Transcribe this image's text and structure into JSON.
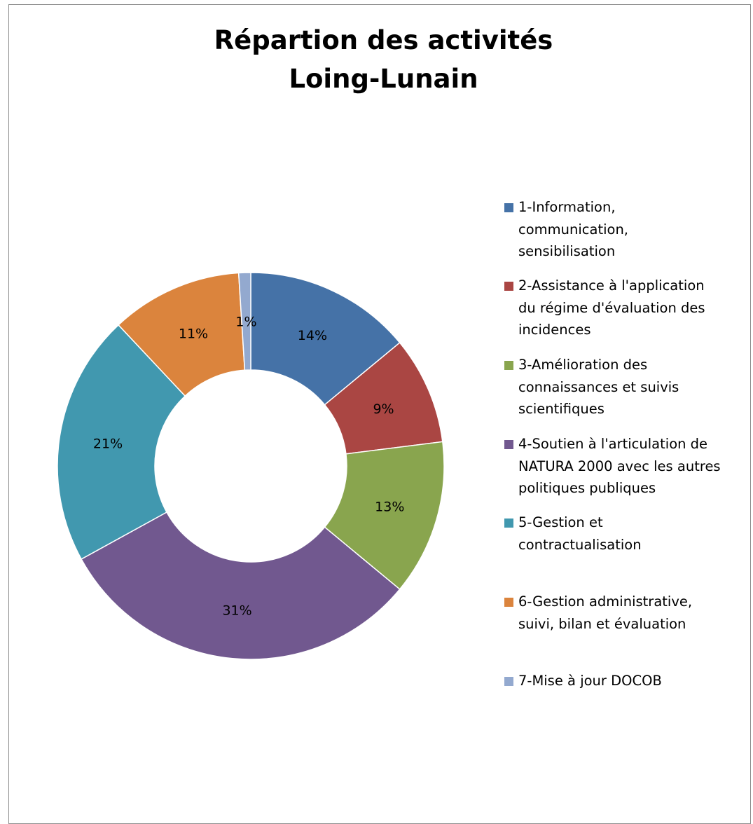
{
  "chart_data": {
    "type": "pie",
    "variant": "doughnut",
    "title_lines": [
      "Répartion des activités",
      "Loing-Lunain"
    ],
    "categories": [
      "1-Information, communication, sensibilisation",
      "2-Assistance à l'application du régime d'évaluation des incidences",
      "3-Amélioration des connaissances et suivis scientifiques",
      "4-Soutien à l'articulation de NATURA 2000 avec les autres politiques publiques",
      "5-Gestion et contractualisation",
      "6-Gestion administrative, suivi, bilan et évaluation",
      "7-Mise à jour DOCOB"
    ],
    "values": [
      14,
      9,
      13,
      31,
      21,
      11,
      1
    ],
    "labels": [
      "14%",
      "9%",
      "13%",
      "31%",
      "21%",
      "11%",
      "1%"
    ],
    "colors": [
      "#4572a7",
      "#aa4643",
      "#89a54e",
      "#71588f",
      "#4198af",
      "#db843d",
      "#93a9cf"
    ],
    "legend_position": "right",
    "legend_lines": [
      [
        "1-Information,",
        "communication,",
        "sensibilisation"
      ],
      [
        "2-Assistance à l'application",
        "du régime d'évaluation des",
        "incidences"
      ],
      [
        "3-Amélioration des",
        "connaissances et suivis",
        "scientifiques"
      ],
      [
        "4-Soutien à l'articulation de",
        "NATURA 2000 avec les autres",
        "politiques publiques"
      ],
      [
        "5-Gestion et",
        "contractualisation"
      ],
      [
        "6-Gestion administrative,",
        "suivi, bilan et évaluation"
      ],
      [
        "7-Mise à jour DOCOB"
      ]
    ]
  }
}
